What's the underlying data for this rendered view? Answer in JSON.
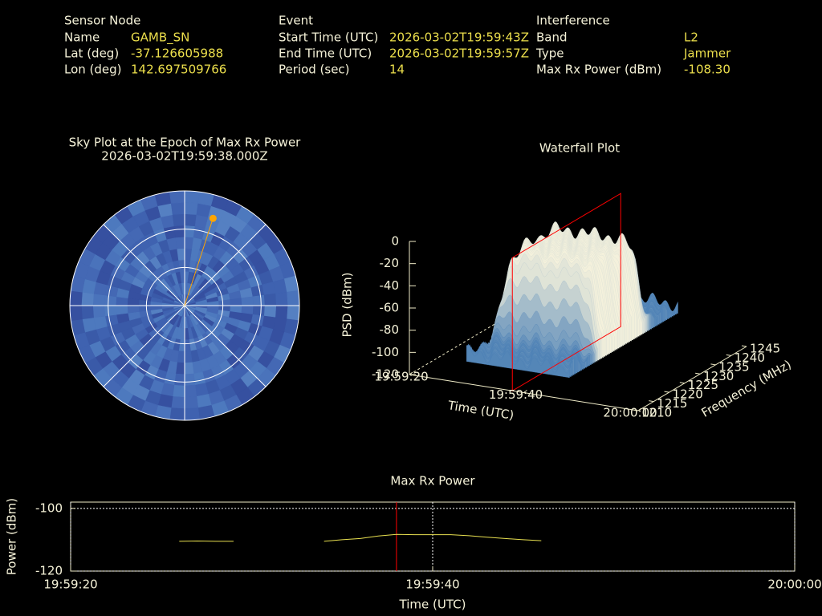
{
  "header": {
    "sensor_node": {
      "title": "Sensor Node",
      "rows": [
        [
          "Name",
          "GAMB_SN"
        ],
        [
          "Lat (deg)",
          "-37.126605988"
        ],
        [
          "Lon (deg)",
          "142.697509766"
        ]
      ]
    },
    "event": {
      "title": "Event",
      "rows": [
        [
          "Start Time (UTC)",
          "2026-03-02T19:59:43Z"
        ],
        [
          "End Time (UTC)",
          "2026-03-02T19:59:57Z"
        ],
        [
          "Period (sec)",
          "14"
        ]
      ]
    },
    "interference": {
      "title": "Interference",
      "rows": [
        [
          "Band",
          "L2"
        ],
        [
          "Type",
          "Jammer"
        ],
        [
          "Max Rx Power (dBm)",
          "-108.30"
        ]
      ]
    }
  },
  "chart_data": [
    {
      "type": "polar",
      "title": "Sky Plot at the Epoch of Max Rx Power",
      "subtitle": "2026-03-02T19:59:38.000Z",
      "point": {
        "azimuth": 18,
        "elevation": 18
      },
      "color": "#ffa500"
    },
    {
      "type": "surface3d",
      "title": "Waterfall Plot",
      "zlabel": "PSD (dBm)",
      "xlabel": "Time (UTC)",
      "ylabel": "Frequency (MHz)",
      "zlim": [
        -120,
        0
      ],
      "zticks": [
        -120,
        -100,
        -80,
        -60,
        -40,
        -20,
        0
      ],
      "xlim": [
        "19:59:20",
        "20:00:00"
      ],
      "xticks": [
        "19:59:20",
        "19:59:40",
        "20:00:00"
      ],
      "ylim": [
        1210,
        1245
      ],
      "yticks": [
        1210,
        1215,
        1220,
        1225,
        1230,
        1235,
        1240,
        1245
      ],
      "marker_x": "19:59:38",
      "marker_color": "#ff0000"
    },
    {
      "type": "line",
      "title": "Max Rx Power",
      "xlabel": "Time (UTC)",
      "ylabel": "Power (dBm)",
      "x": [
        "19:59:26",
        "19:59:27",
        "19:59:28",
        "19:59:29",
        "19:59:30",
        "19:59:31",
        "19:59:32",
        "19:59:33",
        "19:59:34",
        "19:59:35",
        "19:59:36",
        "19:59:37",
        "19:59:38",
        "19:59:39",
        "19:59:40",
        "19:59:41",
        "19:59:42",
        "19:59:43",
        "19:59:44",
        "19:59:45",
        "19:59:46"
      ],
      "series": [
        {
          "color": "#e8e050",
          "values": [
            -110.5,
            -110.4,
            -110.5,
            -110.5,
            null,
            null,
            null,
            null,
            -110.5,
            -110.0,
            -109.6,
            -108.8,
            -108.3,
            -108.4,
            -108.4,
            -108.4,
            -108.7,
            -109.2,
            -109.6,
            -110.0,
            -110.3
          ]
        }
      ],
      "xlim": [
        "19:59:20",
        "20:00:00"
      ],
      "xticks": [
        "19:59:20",
        "19:59:40",
        "20:00:00"
      ],
      "ylim": [
        -120,
        -98
      ],
      "yticks": [
        -120,
        -100
      ],
      "grid": true,
      "marker_x": "19:59:38",
      "marker_color": "#ff0000"
    }
  ]
}
